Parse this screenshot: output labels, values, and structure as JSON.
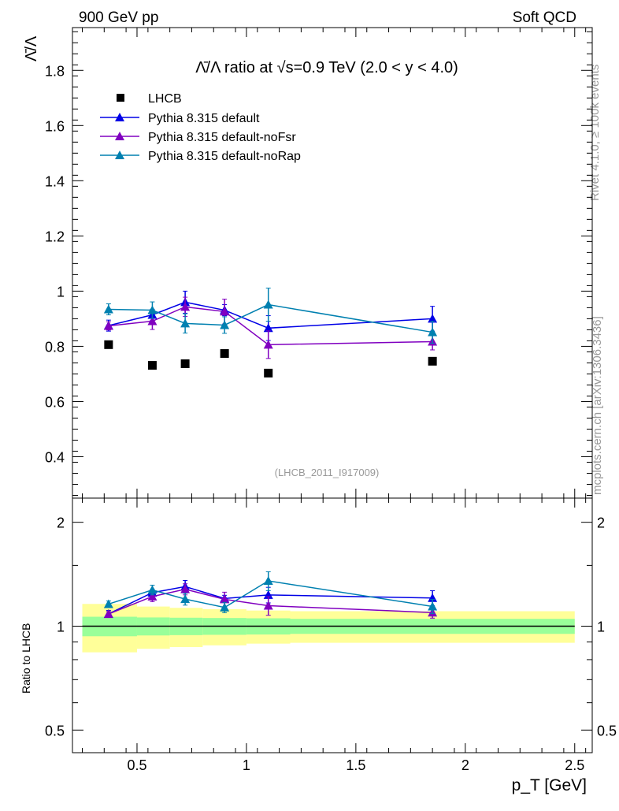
{
  "header": {
    "left": "900 GeV pp",
    "right": "Soft QCD"
  },
  "side": {
    "top": "Rivet 4.1.0, ≥ 100k events",
    "bottom": "mcplots.cern.ch [arXiv:1306.3436]"
  },
  "chart_data": {
    "type": "line",
    "title": "Λ̄/Λ ratio at √s=0.9 TeV (2.0 < y < 4.0)",
    "ylabel": "Λ̄/Λ",
    "xlabel": "p_T [GeV]",
    "ratio_ylabel": "Ratio to LHCB",
    "analysis_tag": "(LHCB_2011_I917009)",
    "xlim": [
      0.205,
      2.58
    ],
    "ylim": [
      0.25,
      1.955
    ],
    "ratio_ylim": [
      0.43,
      2.35
    ],
    "xticks": [
      {
        "v": 0.5,
        "label": "0.5"
      },
      {
        "v": 1,
        "label": "1"
      },
      {
        "v": 1.5,
        "label": "1.5"
      },
      {
        "v": 2,
        "label": "2"
      },
      {
        "v": 2.5,
        "label": "2.5"
      }
    ],
    "yticks": [
      {
        "v": 0.4,
        "label": "0.4"
      },
      {
        "v": 0.6,
        "label": "0.6"
      },
      {
        "v": 0.8,
        "label": "0.8"
      },
      {
        "v": 1.0,
        "label": "1"
      },
      {
        "v": 1.2,
        "label": "1.2"
      },
      {
        "v": 1.4,
        "label": "1.4"
      },
      {
        "v": 1.6,
        "label": "1.6"
      },
      {
        "v": 1.8,
        "label": "1.8"
      }
    ],
    "ratio_yticks": [
      {
        "v": 0.5,
        "label": "0.5"
      },
      {
        "v": 1,
        "label": "1"
      },
      {
        "v": 2,
        "label": "2"
      }
    ],
    "x": [
      0.37,
      0.57,
      0.72,
      0.9,
      1.1,
      1.85
    ],
    "data": {
      "name": "LHCB",
      "values": [
        0.806,
        0.731,
        0.737,
        0.774,
        0.703,
        0.746
      ]
    },
    "bands": {
      "edges": [
        0.25,
        0.5,
        0.65,
        0.8,
        1.0,
        1.2,
        2.5
      ],
      "stat_rel": [
        0.065,
        0.06,
        0.058,
        0.056,
        0.054,
        0.05
      ],
      "total_rel": [
        0.16,
        0.14,
        0.13,
        0.12,
        0.11,
        0.105
      ]
    },
    "series": [
      {
        "name": "Pythia 8.315 default",
        "color": "#0000e6",
        "values": [
          0.875,
          0.914,
          0.96,
          0.931,
          0.866,
          0.9
        ],
        "errors": [
          0.02,
          0.02,
          0.04,
          0.02,
          0.045,
          0.045
        ]
      },
      {
        "name": "Pythia 8.315 default-noFsr",
        "color": "#8000c0",
        "values": [
          0.874,
          0.891,
          0.943,
          0.926,
          0.806,
          0.817
        ],
        "errors": [
          0.015,
          0.03,
          0.035,
          0.045,
          0.05,
          0.03
        ]
      },
      {
        "name": "Pythia 8.315 default-noRap",
        "color": "#0080b0",
        "values": [
          0.934,
          0.931,
          0.883,
          0.877,
          0.951,
          0.851
        ],
        "errors": [
          0.02,
          0.03,
          0.035,
          0.03,
          0.06,
          0.04
        ]
      }
    ],
    "grid": false,
    "legend": "top-left"
  }
}
